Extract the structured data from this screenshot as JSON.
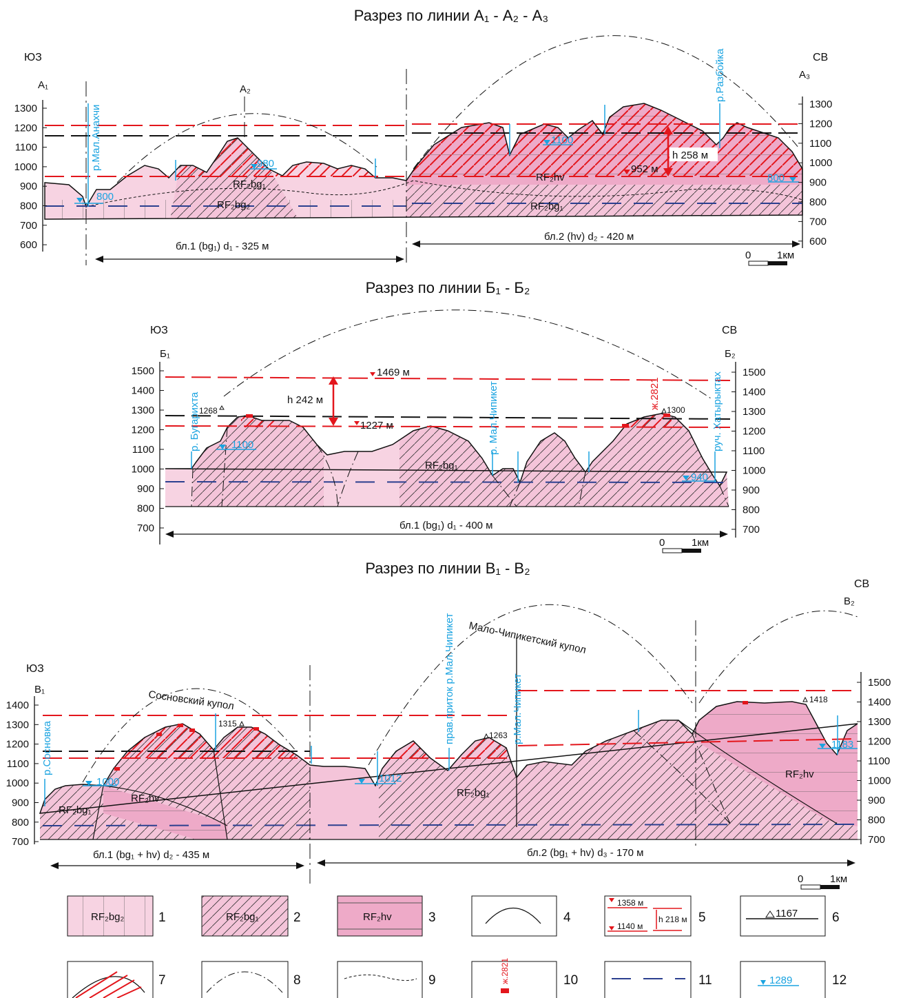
{
  "sections": [
    {
      "title": "Разрез по линии А₁ - А₂ - А₃",
      "left_dir": "ЮЗ",
      "right_dir": "СВ",
      "points": [
        "А₁",
        "А₂",
        "А₃"
      ],
      "left_ticks": [
        1300,
        1200,
        1100,
        1000,
        900,
        800,
        700,
        600
      ],
      "right_ticks": [
        1300,
        1200,
        1100,
        1000,
        900,
        800,
        700,
        600
      ],
      "rivers": [
        "р.Мал.Анахчи",
        "р.Разбойка"
      ],
      "water_levels": [
        "800",
        "980",
        "1100",
        "800"
      ],
      "formations": [
        "RF₂bg₁",
        "RF₂bg₂",
        "RF₂hv",
        "RF₂bg₁"
      ],
      "amplitude": "h 258 м",
      "level_mark": "952 м",
      "blocks": [
        "бл.1 (bg₁)  d₁ - 325 м",
        "бл.2 (hv)  d₂ - 420 м"
      ],
      "scale": [
        "0",
        "1км"
      ]
    },
    {
      "title": "Разрез по линии Б₁ - Б₂",
      "left_dir": "ЮЗ",
      "right_dir": "СВ",
      "points": [
        "Б₁",
        "Б₂"
      ],
      "left_ticks": [
        1500,
        1400,
        1300,
        1200,
        1100,
        1000,
        900,
        800,
        700
      ],
      "right_ticks": [
        1500,
        1400,
        1300,
        1200,
        1100,
        1000,
        900,
        800,
        700
      ],
      "level_marks": [
        "1469 м",
        "1227 м"
      ],
      "amplitude": "h 242 м",
      "summits": [
        "1268",
        "1300"
      ],
      "rivers": [
        "р. Бугарихта",
        "р. Мал.Чипикет",
        "руч. Хатырыктах"
      ],
      "well": "ж.2821",
      "water_levels": [
        "1100",
        "940"
      ],
      "formations": [
        "RF₂bg₁"
      ],
      "blocks": [
        "бл.1 (bg₁)  d₁ - 400 м"
      ],
      "scale": [
        "0",
        "1км"
      ]
    },
    {
      "title": "Разрез по линии В₁ - В₂",
      "left_dir": "ЮЗ",
      "right_dir": "СВ",
      "points": [
        "В₁",
        "В₂"
      ],
      "left_ticks": [
        1400,
        1300,
        1200,
        1100,
        1000,
        900,
        800,
        700
      ],
      "right_ticks": [
        1500,
        1400,
        1300,
        1200,
        1100,
        1000,
        900,
        800,
        700
      ],
      "domes": [
        "Сосновский купол",
        "Мало-Чипикетский купол"
      ],
      "rivers": [
        "р.Сосновка",
        "прав.приток р.Мал.Чипикет",
        "р.Мал.Чипикет"
      ],
      "water_levels": [
        "1000",
        "1012",
        "1183"
      ],
      "summits": [
        "1315",
        "1263",
        "1418"
      ],
      "formations": [
        "RF₂bg₁",
        "RF₂hv",
        "RF₂bg₁",
        "RF₂hv"
      ],
      "blocks": [
        "бл.1 (bg₁ + hv)  d₂ - 435 м",
        "бл.2 (bg₁ + hv)  d₃ - 170 м"
      ],
      "scale": [
        "0",
        "1км"
      ]
    }
  ],
  "legend": [
    {
      "text": "RF₂bg₂",
      "number": "1"
    },
    {
      "text": "RF₂bg₁",
      "number": "2"
    },
    {
      "text": "RF₂hv",
      "number": "3"
    },
    {
      "number": "4"
    },
    {
      "texts": [
        "1358 м",
        "1140 м",
        "h 218 м"
      ],
      "number": "5"
    },
    {
      "text": "1167",
      "number": "6"
    },
    {
      "number": "7"
    },
    {
      "number": "8"
    },
    {
      "number": "9"
    },
    {
      "text": "ж.2821",
      "number": "10"
    },
    {
      "number": "11"
    },
    {
      "text": "1289",
      "number": "12"
    }
  ]
}
